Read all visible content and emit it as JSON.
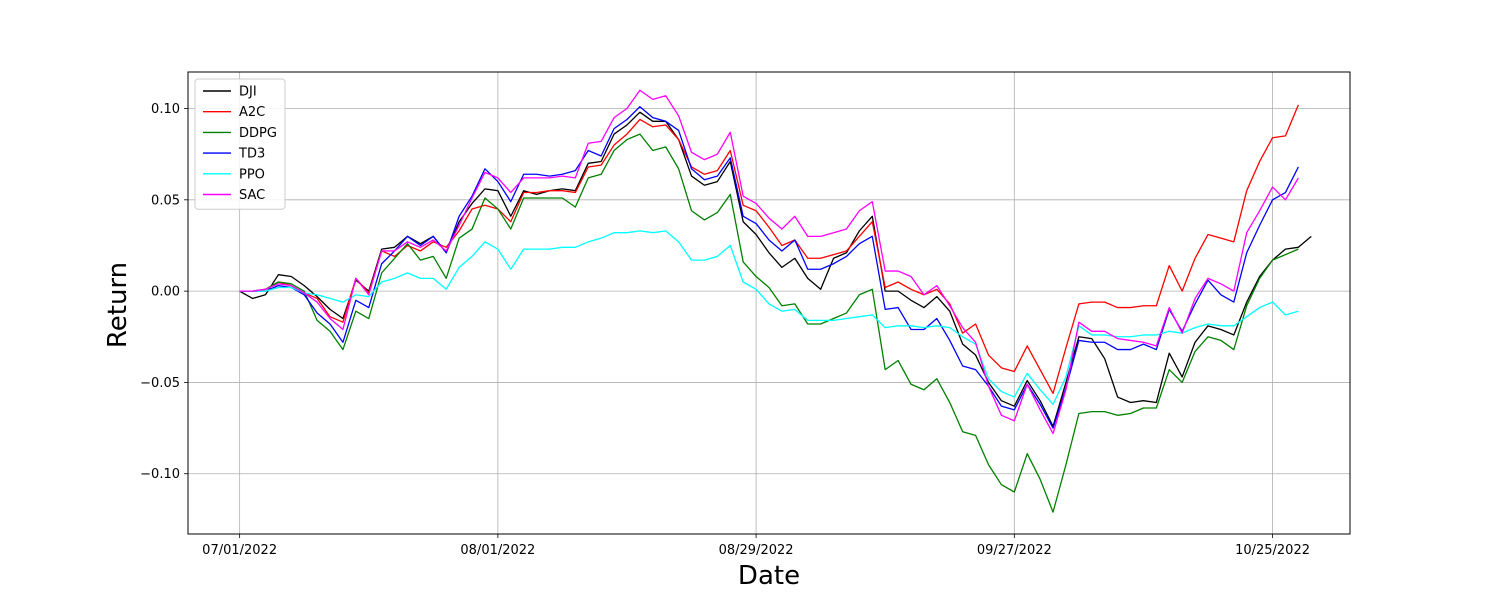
{
  "chart_data": {
    "type": "line",
    "title": "",
    "xlabel": "Date",
    "ylabel": "Return",
    "grid": true,
    "legend_position": "top-left",
    "x_ticks": [
      {
        "x": 0,
        "label": "07/01/2022"
      },
      {
        "x": 20,
        "label": "08/01/2022"
      },
      {
        "x": 40,
        "label": "08/29/2022"
      },
      {
        "x": 60,
        "label": "09/27/2022"
      },
      {
        "x": 80,
        "label": "10/25/2022"
      }
    ],
    "xlim": [
      -4,
      86
    ],
    "y_ticks": [
      -0.1,
      -0.05,
      0.0,
      0.05,
      0.1
    ],
    "y_tick_labels": [
      "−0.10",
      "−0.05",
      "0.00",
      "0.05",
      "0.10"
    ],
    "ylim": [
      -0.133,
      0.12
    ],
    "series": [
      {
        "name": "DJI",
        "color": "#000000",
        "values": [
          0.0,
          -0.004,
          -0.002,
          0.009,
          0.008,
          0.003,
          -0.003,
          -0.01,
          -0.015,
          0.006,
          0.0,
          0.023,
          0.024,
          0.03,
          0.026,
          0.03,
          0.021,
          0.038,
          0.048,
          0.056,
          0.055,
          0.041,
          0.055,
          0.053,
          0.055,
          0.056,
          0.055,
          0.07,
          0.071,
          0.086,
          0.091,
          0.098,
          0.093,
          0.093,
          0.083,
          0.063,
          0.058,
          0.06,
          0.071,
          0.038,
          0.031,
          0.021,
          0.013,
          0.018,
          0.007,
          0.001,
          0.018,
          0.021,
          0.033,
          0.041,
          0.0,
          0.0,
          -0.005,
          -0.009,
          -0.003,
          -0.011,
          -0.029,
          -0.035,
          -0.05,
          -0.06,
          -0.063,
          -0.049,
          -0.06,
          -0.074,
          -0.05,
          -0.025,
          -0.026,
          -0.037,
          -0.058,
          -0.061,
          -0.06,
          -0.061,
          -0.034,
          -0.047,
          -0.028,
          -0.019,
          -0.021,
          -0.024,
          -0.006,
          0.008,
          0.017,
          0.023,
          0.024,
          0.03
        ]
      },
      {
        "name": "A2C",
        "color": "#ff0000",
        "values": [
          0.0,
          0.0,
          0.001,
          0.005,
          0.003,
          -0.001,
          -0.004,
          -0.014,
          -0.017,
          0.007,
          -0.001,
          0.022,
          0.019,
          0.025,
          0.022,
          0.027,
          0.024,
          0.033,
          0.045,
          0.047,
          0.045,
          0.038,
          0.054,
          0.054,
          0.055,
          0.055,
          0.054,
          0.068,
          0.069,
          0.08,
          0.086,
          0.094,
          0.09,
          0.091,
          0.083,
          0.068,
          0.064,
          0.066,
          0.077,
          0.047,
          0.044,
          0.035,
          0.025,
          0.028,
          0.018,
          0.018,
          0.02,
          0.022,
          0.03,
          0.038,
          0.002,
          0.005,
          0.001,
          -0.002,
          0.001,
          -0.007,
          -0.023,
          -0.018,
          -0.035,
          -0.042,
          -0.044,
          -0.03,
          -0.043,
          -0.056,
          -0.031,
          -0.007,
          -0.006,
          -0.006,
          -0.009,
          -0.009,
          -0.008,
          -0.008,
          0.014,
          0.0,
          0.018,
          0.031,
          0.029,
          0.027,
          0.055,
          0.071,
          0.084,
          0.085,
          0.102
        ]
      },
      {
        "name": "DDPG",
        "color": "#008000",
        "values": [
          0.0,
          0.0,
          0.001,
          0.005,
          0.004,
          0.0,
          -0.016,
          -0.022,
          -0.032,
          -0.011,
          -0.015,
          0.01,
          0.018,
          0.026,
          0.017,
          0.019,
          0.007,
          0.029,
          0.034,
          0.051,
          0.045,
          0.034,
          0.051,
          0.051,
          0.051,
          0.051,
          0.046,
          0.062,
          0.064,
          0.077,
          0.083,
          0.086,
          0.077,
          0.079,
          0.067,
          0.044,
          0.039,
          0.043,
          0.053,
          0.016,
          0.008,
          0.002,
          -0.008,
          -0.007,
          -0.018,
          -0.018,
          -0.015,
          -0.012,
          -0.002,
          0.001,
          -0.043,
          -0.038,
          -0.051,
          -0.054,
          -0.048,
          -0.061,
          -0.077,
          -0.079,
          -0.095,
          -0.106,
          -0.11,
          -0.089,
          -0.103,
          -0.121,
          -0.095,
          -0.067,
          -0.066,
          -0.066,
          -0.068,
          -0.067,
          -0.064,
          -0.064,
          -0.043,
          -0.05,
          -0.033,
          -0.025,
          -0.027,
          -0.032,
          -0.008,
          0.007,
          0.017,
          0.02,
          0.023
        ]
      },
      {
        "name": "TD3",
        "color": "#0000ff",
        "values": [
          0.0,
          0.0,
          0.0,
          0.003,
          0.002,
          -0.002,
          -0.012,
          -0.018,
          -0.028,
          -0.005,
          -0.009,
          0.015,
          0.022,
          0.03,
          0.025,
          0.03,
          0.021,
          0.041,
          0.052,
          0.067,
          0.06,
          0.049,
          0.064,
          0.064,
          0.063,
          0.064,
          0.066,
          0.077,
          0.074,
          0.089,
          0.094,
          0.101,
          0.095,
          0.093,
          0.088,
          0.067,
          0.061,
          0.063,
          0.073,
          0.041,
          0.037,
          0.028,
          0.022,
          0.028,
          0.012,
          0.012,
          0.015,
          0.019,
          0.026,
          0.03,
          -0.01,
          -0.009,
          -0.021,
          -0.021,
          -0.015,
          -0.027,
          -0.041,
          -0.043,
          -0.052,
          -0.063,
          -0.065,
          -0.051,
          -0.062,
          -0.075,
          -0.053,
          -0.027,
          -0.028,
          -0.028,
          -0.032,
          -0.032,
          -0.029,
          -0.032,
          -0.01,
          -0.022,
          -0.007,
          0.006,
          -0.002,
          -0.006,
          0.021,
          0.036,
          0.05,
          0.054,
          0.068
        ]
      },
      {
        "name": "PPO",
        "color": "#00ffff",
        "values": [
          0.0,
          0.0,
          0.0,
          0.002,
          0.002,
          -0.001,
          -0.002,
          -0.004,
          -0.006,
          -0.002,
          -0.003,
          0.005,
          0.007,
          0.01,
          0.007,
          0.007,
          0.001,
          0.013,
          0.019,
          0.027,
          0.023,
          0.012,
          0.023,
          0.023,
          0.023,
          0.024,
          0.024,
          0.027,
          0.029,
          0.032,
          0.032,
          0.033,
          0.032,
          0.033,
          0.027,
          0.017,
          0.017,
          0.019,
          0.025,
          0.005,
          0.001,
          -0.007,
          -0.011,
          -0.01,
          -0.016,
          -0.016,
          -0.016,
          -0.015,
          -0.014,
          -0.013,
          -0.02,
          -0.019,
          -0.019,
          -0.02,
          -0.019,
          -0.02,
          -0.025,
          -0.029,
          -0.048,
          -0.055,
          -0.058,
          -0.045,
          -0.054,
          -0.062,
          -0.047,
          -0.019,
          -0.024,
          -0.024,
          -0.025,
          -0.025,
          -0.024,
          -0.024,
          -0.022,
          -0.023,
          -0.02,
          -0.018,
          -0.019,
          -0.019,
          -0.014,
          -0.009,
          -0.006,
          -0.013,
          -0.011
        ]
      },
      {
        "name": "SAC",
        "color": "#ff00ff",
        "values": [
          0.0,
          0.0,
          0.001,
          0.004,
          0.003,
          -0.001,
          -0.006,
          -0.015,
          -0.021,
          0.007,
          -0.002,
          0.022,
          0.022,
          0.027,
          0.024,
          0.028,
          0.022,
          0.036,
          0.051,
          0.065,
          0.062,
          0.054,
          0.062,
          0.062,
          0.062,
          0.063,
          0.062,
          0.081,
          0.082,
          0.095,
          0.1,
          0.11,
          0.105,
          0.107,
          0.096,
          0.076,
          0.072,
          0.075,
          0.087,
          0.052,
          0.048,
          0.04,
          0.034,
          0.041,
          0.03,
          0.03,
          0.032,
          0.034,
          0.044,
          0.049,
          0.011,
          0.011,
          0.008,
          -0.002,
          0.003,
          -0.008,
          -0.02,
          -0.028,
          -0.052,
          -0.068,
          -0.071,
          -0.051,
          -0.065,
          -0.078,
          -0.054,
          -0.017,
          -0.022,
          -0.022,
          -0.026,
          -0.027,
          -0.028,
          -0.03,
          -0.009,
          -0.023,
          -0.004,
          0.007,
          0.004,
          0.0,
          0.032,
          0.044,
          0.057,
          0.05,
          0.062
        ]
      }
    ]
  }
}
